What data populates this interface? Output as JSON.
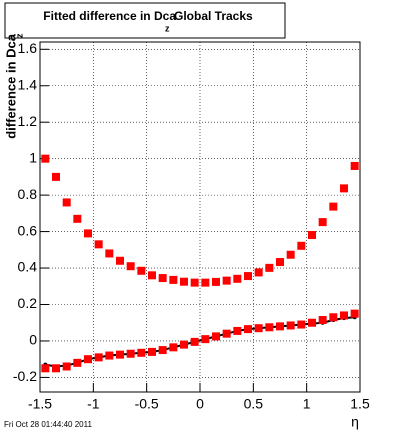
{
  "chart_data": {
    "type": "scatter",
    "title": "Fitted difference in Dca",
    "title_subscript": "z",
    "title_rest": "Global Tracks",
    "ylabel": "difference in Dca",
    "ylabel_subscript": "z",
    "xlabel": "η",
    "timestamp": "Fri Oct 28 01:44:40 2011",
    "x": [
      -1.45,
      -1.35,
      -1.25,
      -1.15,
      -1.05,
      -0.95,
      -0.85,
      -0.75,
      -0.65,
      -0.55,
      -0.45,
      -0.35,
      -0.25,
      -0.15,
      -0.05,
      0.05,
      0.15,
      0.25,
      0.35,
      0.45,
      0.55,
      0.65,
      0.75,
      0.85,
      0.95,
      1.05,
      1.15,
      1.25,
      1.35,
      1.45
    ],
    "series": [
      {
        "color": "#000000",
        "marker": "dot",
        "values": [
          -0.13,
          -0.14,
          -0.135,
          -0.12,
          -0.1,
          -0.09,
          -0.08,
          -0.075,
          -0.07,
          -0.065,
          -0.06,
          -0.05,
          -0.035,
          -0.02,
          -0.005,
          0.01,
          0.025,
          0.04,
          0.055,
          0.065,
          0.07,
          0.075,
          0.08,
          0.085,
          0.09,
          0.095,
          0.1,
          0.115,
          0.125,
          0.13
        ]
      },
      {
        "color": "#ff0000",
        "marker": "square",
        "values": [
          1.0,
          0.9,
          0.76,
          0.67,
          0.59,
          0.53,
          0.48,
          0.44,
          0.41,
          0.385,
          0.36,
          0.345,
          0.335,
          0.325,
          0.32,
          0.32,
          0.324,
          0.331,
          0.341,
          0.356,
          0.376,
          0.401,
          0.433,
          0.473,
          0.522,
          0.581,
          0.652,
          0.737,
          0.837,
          0.96
        ]
      },
      {
        "color": "#ff0000",
        "marker": "square",
        "values": [
          -0.15,
          -0.15,
          -0.14,
          -0.12,
          -0.1,
          -0.09,
          -0.08,
          -0.075,
          -0.07,
          -0.065,
          -0.06,
          -0.05,
          -0.035,
          -0.02,
          -0.005,
          0.01,
          0.025,
          0.04,
          0.055,
          0.065,
          0.07,
          0.075,
          0.08,
          0.085,
          0.09,
          0.1,
          0.115,
          0.13,
          0.14,
          0.15
        ]
      }
    ],
    "xlim": [
      -1.5,
      1.5
    ],
    "ylim": [
      -0.28,
      1.64
    ],
    "xticks": [
      -1.5,
      -1,
      -0.5,
      0,
      0.5,
      1,
      1.5
    ],
    "yticks": [
      -0.2,
      0,
      0.2,
      0.4,
      0.6,
      0.8,
      1,
      1.2,
      1.4,
      1.6
    ],
    "grid": true
  }
}
